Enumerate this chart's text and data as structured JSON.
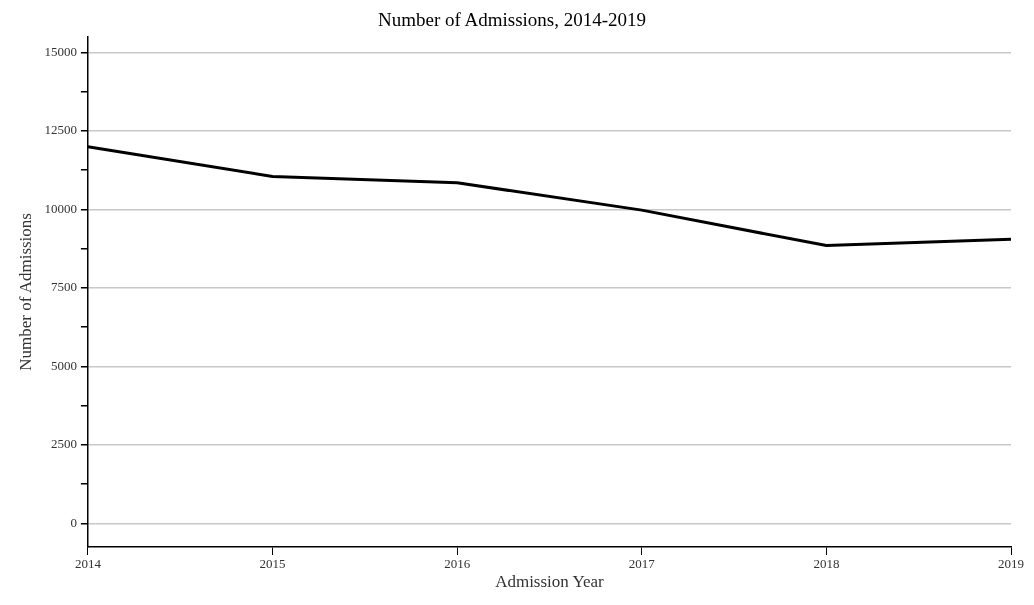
{
  "chart_data": {
    "type": "line",
    "title": "Number of Admissions, 2014-2019",
    "xlabel": "Admission Year",
    "ylabel": "Number of Admissions",
    "categories": [
      "2014",
      "2015",
      "2016",
      "2017",
      "2018",
      "2019"
    ],
    "series": [
      {
        "color": "#000000",
        "values": [
          12000,
          11050,
          10850,
          9980,
          8850,
          9050
        ]
      }
    ],
    "ylim": [
      -750,
      15500
    ],
    "yticks": [
      0,
      {
        "value": 1250,
        "label": null
      },
      2500,
      {
        "value": 3750,
        "label": null
      },
      5000,
      {
        "value": 6250,
        "label": null
      },
      7500,
      {
        "value": 8750,
        "label": null
      },
      10000,
      {
        "value": 11250,
        "label": null
      },
      12500,
      {
        "value": 13750,
        "label": null
      },
      15000
    ],
    "grid": "y",
    "legend": false,
    "marker": "none",
    "line_style": "solid"
  }
}
